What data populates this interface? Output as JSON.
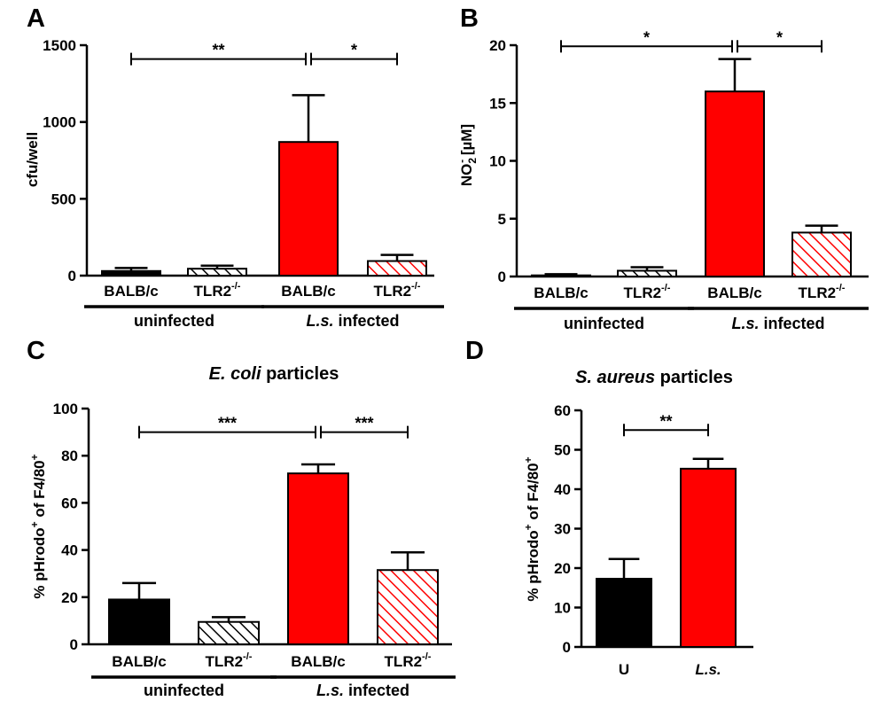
{
  "colors": {
    "infected": "#ff0000",
    "uninfected": "#000000",
    "hatch_black": "#000000",
    "hatch_red": "#ff0000"
  },
  "chart_data": [
    {
      "panel": "A",
      "type": "bar",
      "title": "",
      "ylabel": "cfu/well",
      "ylim": [
        0,
        1500
      ],
      "yticks": [
        "0",
        "500",
        "1000",
        "1500"
      ],
      "categories": [
        "BALB/c",
        "TLR2",
        "BALB/c",
        "TLR2"
      ],
      "category_sup": [
        "",
        "-/-",
        "",
        "-/-"
      ],
      "fills": [
        "black",
        "hatch-black",
        "red",
        "hatch-red"
      ],
      "values": [
        30,
        45,
        870,
        95
      ],
      "errors": [
        20,
        20,
        305,
        40
      ],
      "groups": [
        {
          "label": "uninfected",
          "italic": "",
          "span": [
            0,
            1
          ]
        },
        {
          "label": " infected",
          "italic": "L.s.",
          "span": [
            2,
            3
          ]
        }
      ],
      "significance": [
        {
          "from": 0,
          "to": 2,
          "label": "**",
          "y": 1410
        },
        {
          "from": 2,
          "to": 3,
          "label": "*",
          "y": 1410
        }
      ]
    },
    {
      "panel": "B",
      "type": "bar",
      "title": "",
      "ylabel": "NO",
      "ylabel_sub": "2",
      "ylabel_sup": "-",
      "ylabel_unit": " [µM]",
      "ylim": [
        0,
        20
      ],
      "yticks": [
        "0",
        "5",
        "10",
        "15",
        "20"
      ],
      "categories": [
        "BALB/c",
        "TLR2",
        "BALB/c",
        "TLR2"
      ],
      "category_sup": [
        "",
        "-/-",
        "",
        "-/-"
      ],
      "fills": [
        "black",
        "hatch-black",
        "red",
        "hatch-red"
      ],
      "values": [
        0.1,
        0.5,
        16.0,
        3.8
      ],
      "errors": [
        0.1,
        0.3,
        2.8,
        0.6
      ],
      "groups": [
        {
          "label": "uninfected",
          "italic": "",
          "span": [
            0,
            1
          ]
        },
        {
          "label": " infected",
          "italic": "L.s.",
          "span": [
            2,
            3
          ]
        }
      ],
      "significance": [
        {
          "from": 0,
          "to": 2,
          "label": "*",
          "y": 19.9
        },
        {
          "from": 2,
          "to": 3,
          "label": "*",
          "y": 19.9
        }
      ]
    },
    {
      "panel": "C",
      "type": "bar",
      "title_italic": "E. coli",
      "title": " particles",
      "ylabel": "% pHrodo",
      "ylabel_sup": "+",
      "ylabel_rest": " of F4/80",
      "ylabel_sup2": "+",
      "ylim": [
        0,
        100
      ],
      "yticks": [
        "0",
        "20",
        "40",
        "60",
        "80",
        "100"
      ],
      "categories": [
        "BALB/c",
        "TLR2",
        "BALB/c",
        "TLR2"
      ],
      "category_sup": [
        "",
        "-/-",
        "",
        "-/-"
      ],
      "fills": [
        "black",
        "hatch-black",
        "red",
        "hatch-red"
      ],
      "values": [
        19,
        9.5,
        72.5,
        31.5
      ],
      "errors": [
        7,
        2,
        3.8,
        7.5
      ],
      "groups": [
        {
          "label": "uninfected",
          "italic": "",
          "span": [
            0,
            1
          ]
        },
        {
          "label": " infected",
          "italic": "L.s.",
          "span": [
            2,
            3
          ]
        }
      ],
      "significance": [
        {
          "from": 0,
          "to": 2,
          "label": "***",
          "y": 90
        },
        {
          "from": 2,
          "to": 3,
          "label": "***",
          "y": 90
        }
      ]
    },
    {
      "panel": "D",
      "type": "bar",
      "title_italic": "S. aureus",
      "title": " particles",
      "ylabel": "% pHrodo",
      "ylabel_sup": "+",
      "ylabel_rest": " of F4/80",
      "ylabel_sup2": "+",
      "ylim": [
        0,
        60
      ],
      "yticks": [
        "0",
        "10",
        "20",
        "30",
        "40",
        "50",
        "60"
      ],
      "categories": [
        "U",
        "L.s."
      ],
      "category_sup": [
        "",
        ""
      ],
      "category_italic": [
        false,
        true
      ],
      "fills": [
        "black",
        "red"
      ],
      "values": [
        17.3,
        45.2
      ],
      "errors": [
        5,
        2.5
      ],
      "groups": [],
      "significance": [
        {
          "from": 0,
          "to": 1,
          "label": "**",
          "y": 55
        }
      ]
    }
  ]
}
